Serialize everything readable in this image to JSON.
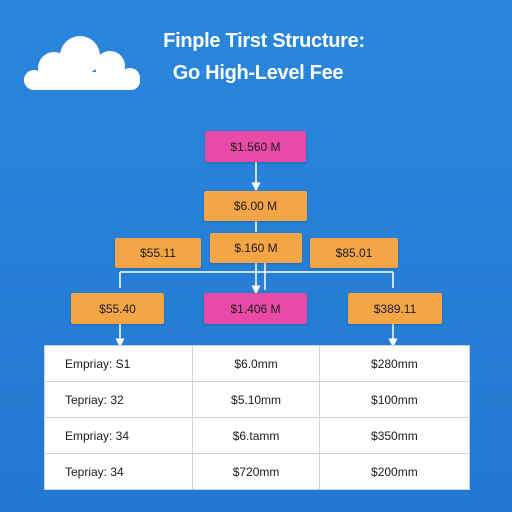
{
  "header": {
    "title_line1": "Finple Tirst Structure:",
    "title_line2": "Go High-Level Fee"
  },
  "colors": {
    "background": "#2a86dd",
    "pink_box": "#e94aa8",
    "orange_box": "#f4a546",
    "connector": "#ffffff"
  },
  "icons": [
    "cloud-icon"
  ],
  "nodes": {
    "top": "$1.560 M",
    "second": "$6.00 M",
    "mid_left": "$55.11",
    "mid_center": "$.160 M",
    "mid_right": "$85.01",
    "low_left": "$55.40",
    "low_center": "$1.406 M",
    "low_right": "$389.11"
  },
  "table": {
    "rows": [
      [
        "Empriay: S1",
        "$6.0mm",
        "$280mm"
      ],
      [
        "Tepriay: 32",
        "$5.10mm",
        "$100mm"
      ],
      [
        "Empriay: 34",
        "$6.tamm",
        "$350mm"
      ],
      [
        "Tepriay: 34",
        "$720mm",
        "$200mm"
      ]
    ]
  }
}
